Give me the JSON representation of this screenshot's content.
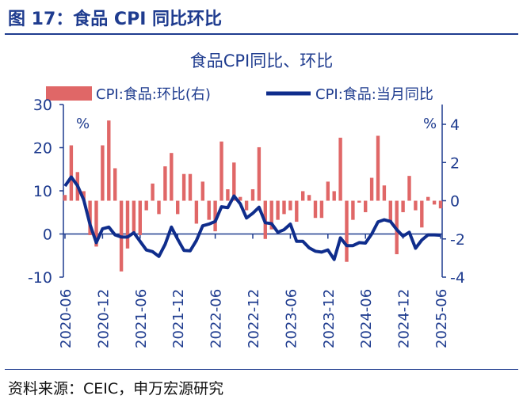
{
  "figure_title": "图 17：食品 CPI 同比环比",
  "source": "资料来源：CEIC，申万宏源研究",
  "colors": {
    "line": "#0f2d8c",
    "bars": "#e06767",
    "axis": "#1f3c8f"
  },
  "chart_data": {
    "type": "bar+line",
    "title": "食品CPI同比、环比",
    "left_unit": "%",
    "right_unit": "%",
    "left_ylim": [
      -10,
      30
    ],
    "left_ticks": [
      "30",
      "20",
      "10",
      "0",
      "-10"
    ],
    "right_ylim": [
      -4,
      4
    ],
    "right_ticks": [
      "4",
      "2",
      "0",
      "-2",
      "-4"
    ],
    "legend_position": "top",
    "x_tick_labels": [
      "2020-06",
      "2020-12",
      "2021-06",
      "2021-12",
      "2022-06",
      "2022-12",
      "2023-06",
      "2023-12",
      "2024-06",
      "2024-12",
      "2025-06"
    ],
    "x": [
      "2020-06",
      "2020-07",
      "2020-08",
      "2020-09",
      "2020-10",
      "2020-11",
      "2020-12",
      "2021-01",
      "2021-02",
      "2021-03",
      "2021-04",
      "2021-05",
      "2021-06",
      "2021-07",
      "2021-08",
      "2021-09",
      "2021-10",
      "2021-11",
      "2021-12",
      "2022-01",
      "2022-02",
      "2022-03",
      "2022-04",
      "2022-05",
      "2022-06",
      "2022-07",
      "2022-08",
      "2022-09",
      "2022-10",
      "2022-11",
      "2022-12",
      "2023-01",
      "2023-02",
      "2023-03",
      "2023-04",
      "2023-05",
      "2023-06",
      "2023-07",
      "2023-08",
      "2023-09",
      "2023-10",
      "2023-11",
      "2023-12",
      "2024-01",
      "2024-02",
      "2024-03",
      "2024-04",
      "2024-05",
      "2024-06",
      "2024-07",
      "2024-08",
      "2024-09",
      "2024-10",
      "2024-11",
      "2024-12",
      "2025-01",
      "2025-02",
      "2025-03",
      "2025-04",
      "2025-05",
      "2025-06"
    ],
    "series": [
      {
        "name": "CPI:食品:环比(右)",
        "type": "bar",
        "axis": "right",
        "values": [
          0.3,
          2.9,
          1.5,
          0.5,
          -1.8,
          -2.4,
          2.9,
          4.2,
          1.7,
          -3.7,
          -2.5,
          -1.8,
          -1.8,
          -0.5,
          0.9,
          -0.7,
          1.8,
          2.5,
          -0.7,
          1.4,
          1.4,
          -1.2,
          1.0,
          -1.0,
          -1.6,
          3.1,
          0.6,
          2.0,
          0.2,
          -0.5,
          0.6,
          2.8,
          -2.0,
          -1.5,
          -1.0,
          -0.7,
          -0.5,
          -1.1,
          0.5,
          0.3,
          -0.9,
          -0.9,
          1.0,
          0.5,
          3.3,
          -3.2,
          -1.0,
          -0.1,
          -0.6,
          1.2,
          3.4,
          0.8,
          -1.1,
          -2.8,
          -0.6,
          1.3,
          -0.5,
          -1.4,
          0.2,
          -0.2,
          -0.4
        ]
      },
      {
        "name": "CPI:食品:当月同比",
        "type": "line",
        "axis": "left",
        "values": [
          11.1,
          13.2,
          11.2,
          7.9,
          2.2,
          -2.0,
          1.2,
          1.6,
          -0.2,
          -0.7,
          -0.7,
          0.3,
          -1.7,
          -3.7,
          -4.1,
          -5.2,
          -2.4,
          1.6,
          -1.2,
          -3.8,
          -3.9,
          -1.5,
          1.9,
          2.3,
          2.9,
          6.3,
          6.1,
          8.8,
          7.0,
          3.7,
          4.8,
          6.2,
          2.6,
          2.4,
          0.4,
          1.0,
          2.3,
          -1.7,
          -1.7,
          -3.2,
          -4.0,
          -4.2,
          -3.7,
          -5.9,
          -0.9,
          -2.7,
          -2.7,
          -2.0,
          -2.1,
          0.0,
          2.8,
          3.3,
          2.9,
          1.0,
          -0.5,
          0.4,
          -3.3,
          -1.4,
          -0.2,
          -0.2,
          -0.3
        ]
      }
    ]
  }
}
